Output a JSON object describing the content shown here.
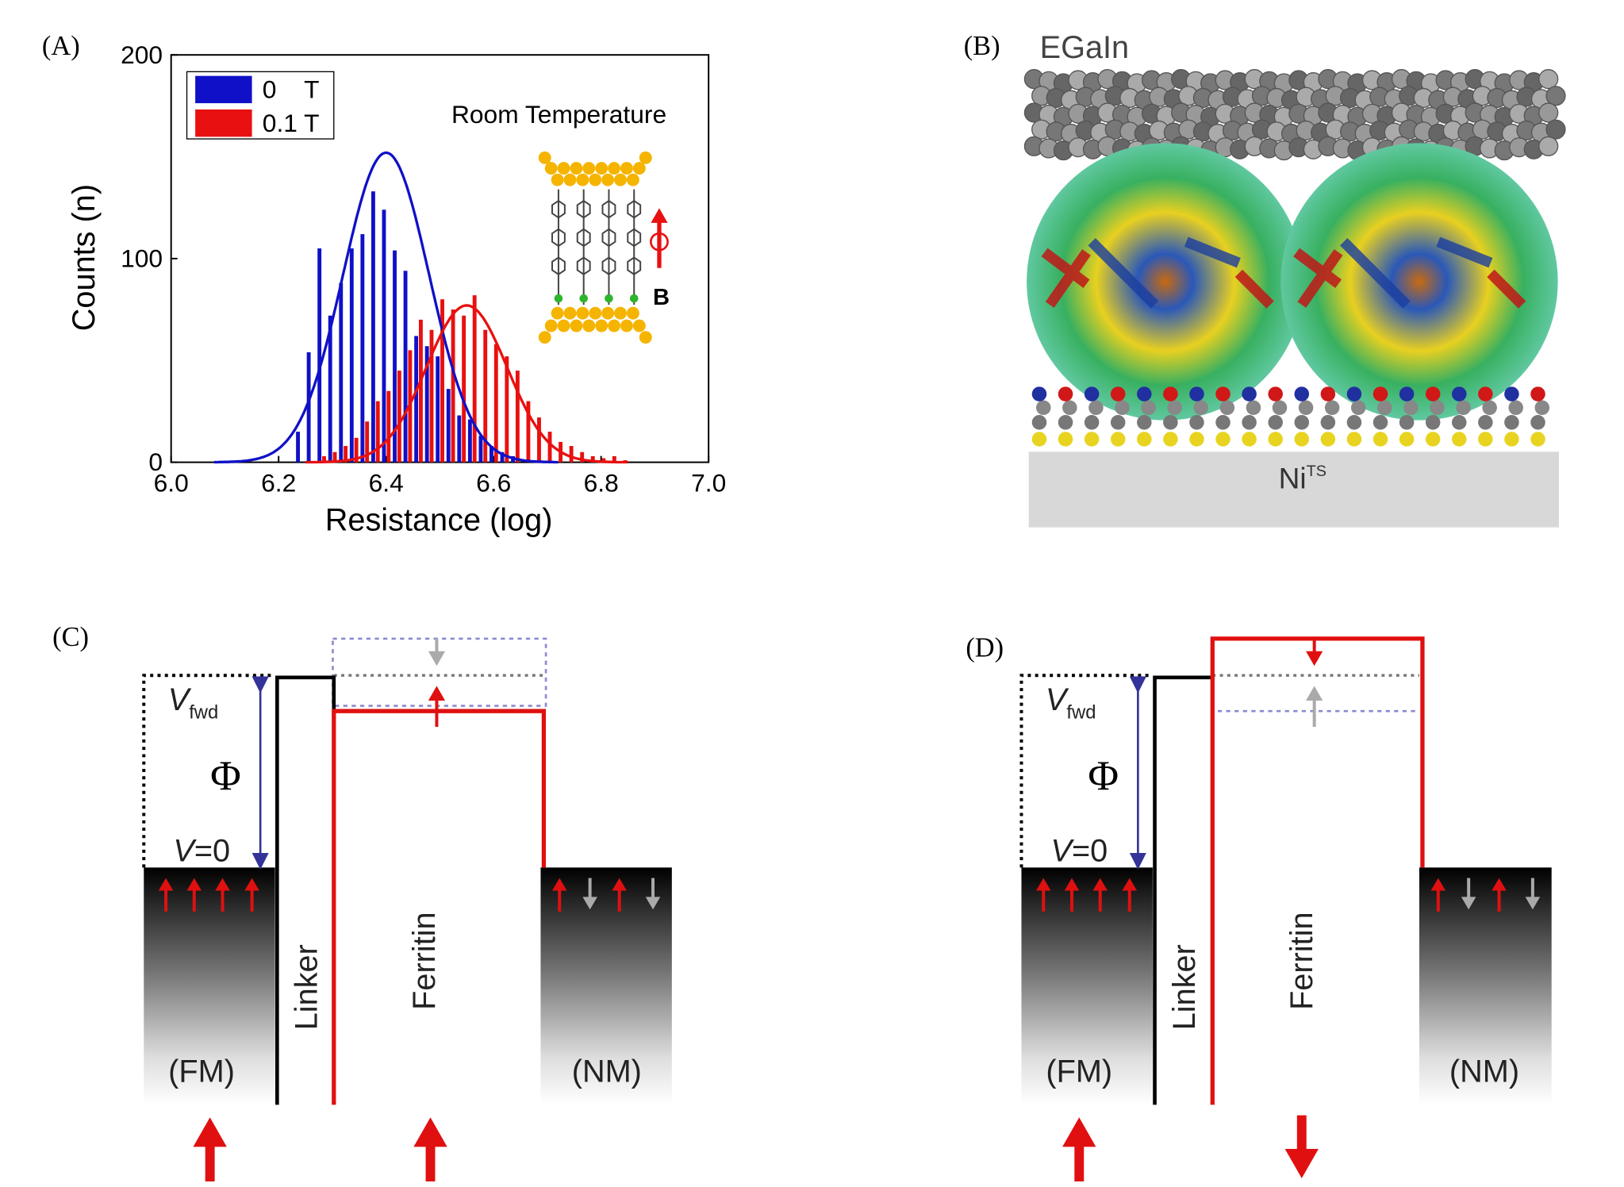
{
  "chart_data": {
    "type": "histogram",
    "xlabel": "Resistance (log)",
    "ylabel": "Counts (n)",
    "annotation": "Room Temperature",
    "inset_label": "B",
    "xlim": [
      6.0,
      7.0
    ],
    "ylim": [
      0,
      200
    ],
    "xticks": [
      {
        "value": 6.0,
        "label": "6.0"
      },
      {
        "value": 6.2,
        "label": "6.2"
      },
      {
        "value": 6.4,
        "label": "6.4"
      },
      {
        "value": 6.6,
        "label": "6.6"
      },
      {
        "value": 6.8,
        "label": "6.8"
      },
      {
        "value": 7.0,
        "label": "7.0"
      }
    ],
    "yticks": [
      0,
      100,
      200
    ],
    "legend": "upper left",
    "bins": [
      6.23,
      6.25,
      6.27,
      6.29,
      6.31,
      6.33,
      6.35,
      6.37,
      6.39,
      6.41,
      6.43,
      6.45,
      6.47,
      6.49,
      6.51,
      6.53,
      6.55,
      6.57,
      6.59,
      6.61,
      6.63,
      6.65,
      6.67,
      6.69,
      6.71,
      6.73,
      6.75,
      6.77,
      6.79,
      6.81,
      6.83,
      6.85
    ],
    "series": [
      {
        "name": "0    T",
        "color": "#1010c8",
        "values": [
          15,
          54,
          105,
          72,
          88,
          105,
          112,
          133,
          124,
          104,
          94,
          62,
          57,
          52,
          36,
          23,
          21,
          13,
          8,
          5,
          3,
          0,
          0,
          0,
          0,
          0,
          0,
          0,
          0,
          0,
          0
        ],
        "fit": {
          "center": 6.4,
          "amplitude": 152,
          "sigma": 0.08
        }
      },
      {
        "name": "0.1 T",
        "color": "#e81010",
        "values": [
          0,
          0,
          3,
          5,
          8,
          12,
          20,
          30,
          35,
          45,
          55,
          70,
          65,
          80,
          75,
          72,
          82,
          65,
          58,
          52,
          45,
          30,
          22,
          15,
          10,
          8,
          5,
          3,
          2,
          3,
          1
        ],
        "fit": {
          "center": 6.55,
          "amplitude": 77,
          "sigma": 0.075
        }
      }
    ]
  },
  "panels": {
    "a": "(A)",
    "b": "(B)",
    "c": "(C)",
    "d": "(D)"
  },
  "panel_b": {
    "top": "EGaIn",
    "bottom": "Ni",
    "bottom_sup": "TS"
  },
  "panel_c": {
    "v": "V",
    "fwd": "fwd",
    "phi": "Φ",
    "v0": "V",
    "v0_rest": "=0",
    "fm": "(FM)",
    "linker": "Linker",
    "ferritin": "Ferritin",
    "nm": "(NM)"
  },
  "panel_d": {
    "v": "V",
    "fwd": "fwd",
    "phi": "Φ",
    "v0": "V",
    "v0_rest": "=0",
    "fm": "(FM)",
    "linker": "Linker",
    "ferritin": "Ferritin",
    "nm": "(NM)"
  }
}
